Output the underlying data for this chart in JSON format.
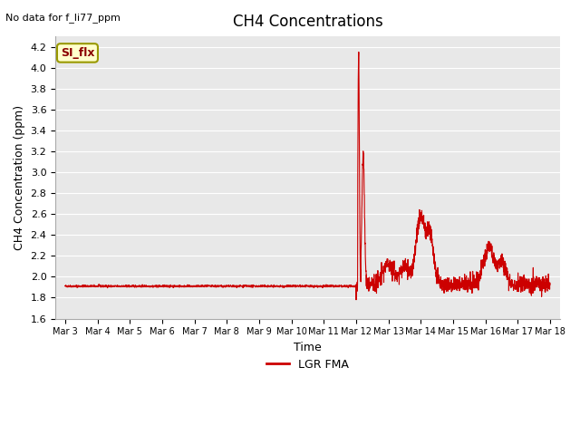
{
  "title": "CH4 Concentrations",
  "top_left_text": "No data for f_li77_ppm",
  "ylabel": "CH4 Concentration (ppm)",
  "xlabel": "Time",
  "ylim": [
    1.6,
    4.3
  ],
  "line_color": "#cc0000",
  "legend_label": "LGR FMA",
  "legend_box_color": "#ffffcc",
  "legend_box_edge": "#999900",
  "legend_box_text": "SI_flx",
  "background_color": "#e8e8e8",
  "xtick_labels": [
    "Mar 3",
    "Mar 4",
    "Mar 5",
    "Mar 6",
    "Mar 7",
    "Mar 8",
    "Mar 9",
    "Mar 10",
    "Mar 11",
    "Mar 12",
    "Mar 13",
    "Mar 14",
    "Mar 15",
    "Mar 16",
    "Mar 17",
    "Mar 18"
  ],
  "ytick_values": [
    1.6,
    1.8,
    2.0,
    2.2,
    2.4,
    2.6,
    2.8,
    3.0,
    3.2,
    3.4,
    3.6,
    3.8,
    4.0,
    4.2
  ],
  "baseline_value": 1.91,
  "transition_day": 9.0,
  "spike_peak": 4.15,
  "spike2_peak": 3.2,
  "spike3_peak": 2.58,
  "post_spike_base": 1.93
}
